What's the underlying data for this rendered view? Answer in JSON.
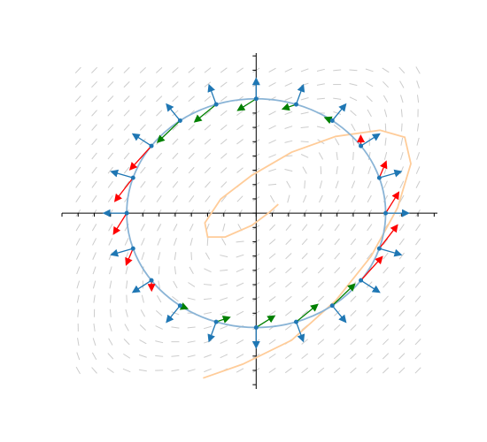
{
  "chart_data": {
    "type": "vector-field",
    "xlim": [
      -12,
      11.2
    ],
    "ylim": [
      -12.3,
      11.2
    ],
    "xticks": [
      -12,
      -11,
      -10,
      -9,
      -8,
      -7,
      -6,
      -5,
      -4,
      -3,
      -2,
      -1,
      0,
      1,
      2,
      3,
      4,
      5,
      6,
      7,
      8,
      9,
      10,
      11
    ],
    "yticks": [
      -12,
      -11,
      -10,
      -9,
      -8,
      -7,
      -6,
      -5,
      -4,
      -3,
      -2,
      -1,
      0,
      1,
      2,
      3,
      4,
      5,
      6,
      7,
      8,
      9,
      10,
      11
    ],
    "field_matrix": [
      [
        0.1,
        -0.14
      ],
      [
        0.18,
        -0.1
      ]
    ],
    "field_grid": {
      "xlim": [
        -11,
        10
      ],
      "ylim": [
        -11,
        10
      ],
      "step": 1,
      "color": "#cccccc"
    },
    "circle": {
      "radius": 8,
      "count": 20,
      "color": "#8ab4d6"
    },
    "normal_length": 1.4,
    "normal_color": "#1f77b4",
    "flux_colors": {
      "out": "#ff0000",
      "in": "#008000"
    },
    "trajectory": {
      "color": "#ffcc99",
      "x": [
        1.37,
        0.82,
        -0.27,
        -1.91,
        -3.0,
        -3.17,
        -2.19,
        -0.27,
        2.19,
        4.92,
        7.65,
        9.18,
        9.56,
        8.74,
        7.1,
        4.92,
        2.19,
        -0.82,
        -3.28
      ],
      "y": [
        0.62,
        0.06,
        -0.86,
        -1.67,
        -1.67,
        -0.68,
        0.99,
        2.65,
        4.26,
        5.37,
        5.8,
        5.31,
        3.46,
        0.37,
        -3.02,
        -6.11,
        -8.89,
        -10.56,
        -11.54
      ]
    }
  }
}
